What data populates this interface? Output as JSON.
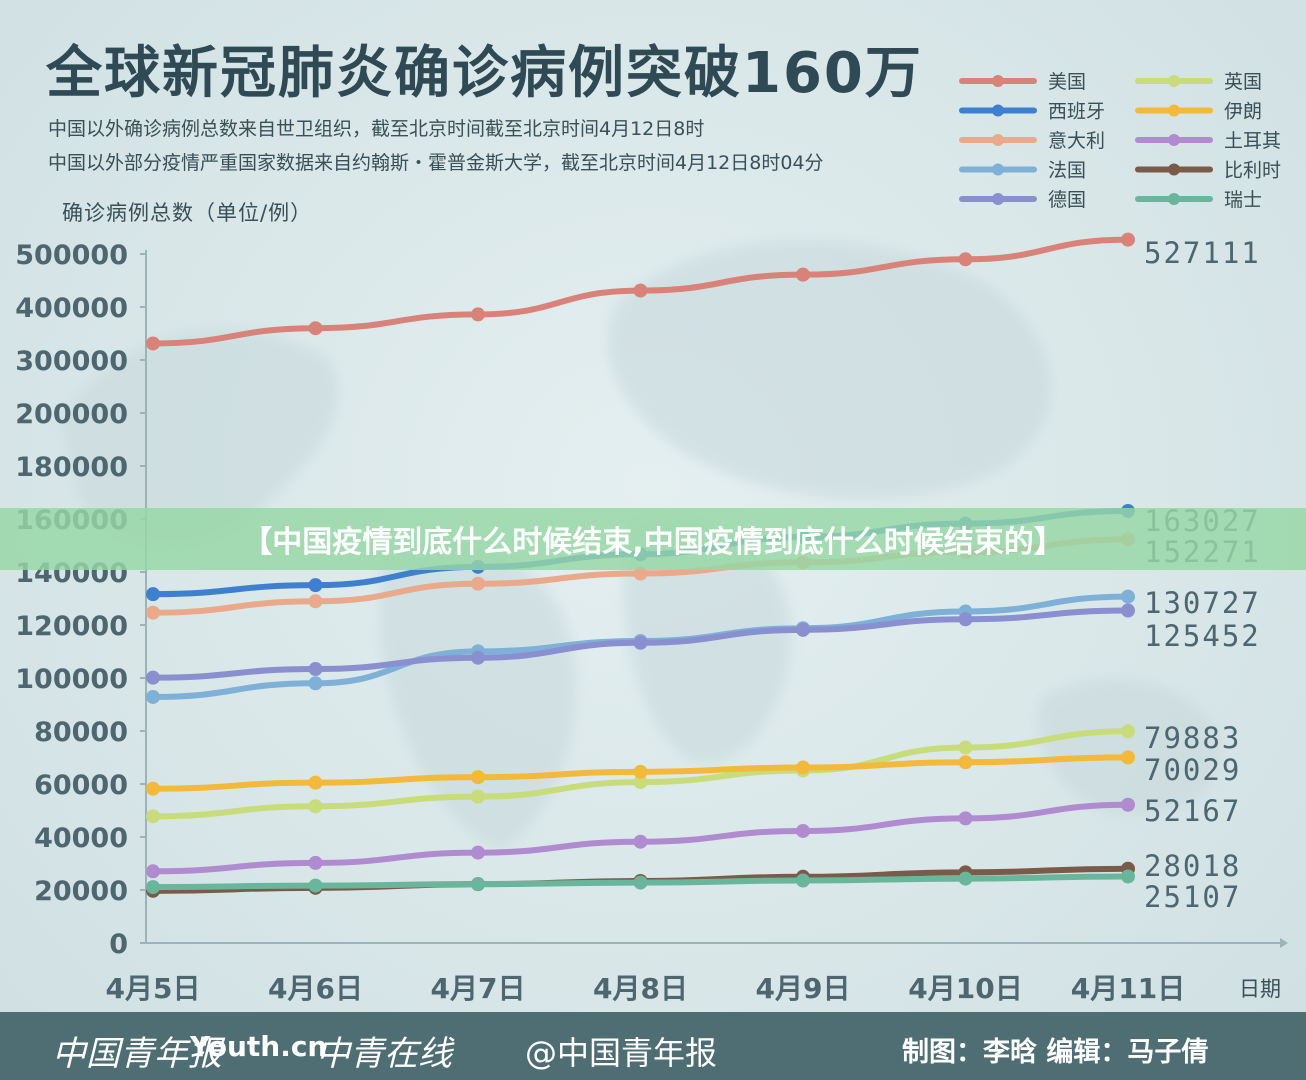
{
  "title": "全球新冠肺炎确诊病例突破160万",
  "subtitle_lines": [
    "中国以外确诊病例总数来自世卫组织，截至北京时间截至北京时间4月12日8时",
    "中国以外部分疫情严重国家数据来自约翰斯・霍普金斯大学，截至北京时间4月12日8时04分"
  ],
  "banner_text": "【中国疫情到底什么时候结束,中国疫情到底什么时候结束的】",
  "footer": {
    "logo1": "中国青年报",
    "logo2": "Youth.cn",
    "logo3": "中青在线",
    "weibo": "@中国青年报",
    "credit": "制图：李晗  编辑：马子倩"
  },
  "chart_data": {
    "type": "line",
    "ylabel": "确诊病例总数（单位/例）",
    "xlabel": "日期",
    "categories": [
      "4月5日",
      "4月6日",
      "4月7日",
      "4月8日",
      "4月9日",
      "4月10日",
      "4月11日"
    ],
    "ytick_labels": [
      "0",
      "20000",
      "40000",
      "60000",
      "80000",
      "100000",
      "120000",
      "140000",
      "160000",
      "180000",
      "200000",
      "300000",
      "400000",
      "500000"
    ],
    "ytick_values": [
      0,
      20000,
      40000,
      60000,
      80000,
      100000,
      120000,
      140000,
      160000,
      180000,
      200000,
      300000,
      400000,
      500000
    ],
    "legend_position": "top-right",
    "series": [
      {
        "name": "美国",
        "color": "#d8827a",
        "values": [
          331234,
          360000,
          386000,
          431000,
          461000,
          490000,
          527111
        ],
        "end_label": "527111"
      },
      {
        "name": "西班牙",
        "color": "#3f7fcf",
        "values": [
          131646,
          135032,
          141942,
          146690,
          153222,
          158273,
          163027
        ],
        "end_label": "163027"
      },
      {
        "name": "意大利",
        "color": "#e9a98a",
        "values": [
          124632,
          128948,
          135586,
          139422,
          143626,
          147577,
          152271
        ],
        "end_label": "152271"
      },
      {
        "name": "法国",
        "color": "#7fb0d8",
        "values": [
          92839,
          98010,
          110065,
          113959,
          118783,
          125105,
          130727
        ],
        "end_label": "130727"
      },
      {
        "name": "德国",
        "color": "#8a8fcf",
        "values": [
          100123,
          103374,
          107663,
          113296,
          118181,
          122171,
          125452
        ],
        "end_label": "125452"
      },
      {
        "name": "英国",
        "color": "#c8dc7c",
        "values": [
          47806,
          51608,
          55242,
          60733,
          65077,
          73758,
          79883
        ],
        "end_label": "79883"
      },
      {
        "name": "伊朗",
        "color": "#f3b93a",
        "values": [
          58226,
          60500,
          62589,
          64586,
          66220,
          68192,
          70029
        ],
        "end_label": "70029"
      },
      {
        "name": "土耳其",
        "color": "#b18bd0",
        "values": [
          27069,
          30217,
          34109,
          38226,
          42282,
          47029,
          52167
        ],
        "end_label": "52167"
      },
      {
        "name": "比利时",
        "color": "#7a5a48",
        "values": [
          19691,
          20814,
          22194,
          23403,
          24983,
          26667,
          28018
        ],
        "end_label": "28018"
      },
      {
        "name": "瑞士",
        "color": "#6ab69c",
        "values": [
          21100,
          21657,
          22253,
          22789,
          23574,
          24308,
          25107
        ],
        "end_label": "25107"
      }
    ]
  }
}
